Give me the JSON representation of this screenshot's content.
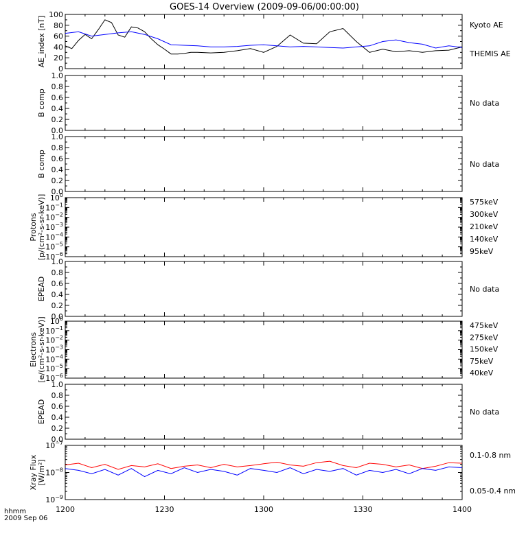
{
  "title": "GOES-14 Overview (2009-09-06/00:00:00)",
  "x_axis": {
    "tick_labels": [
      "1200",
      "1230",
      "1300",
      "1330",
      "1400"
    ],
    "footer_top": "hhmm",
    "footer_bottom": "2009 Sep 06"
  },
  "chart_data": [
    {
      "panel": "ae",
      "type": "line",
      "ylabel": "AE_index [nT]",
      "ylim": [
        0,
        100
      ],
      "yticks": [
        "0",
        "20",
        "40",
        "60",
        "80",
        "100"
      ],
      "x_range_min": [
        0,
        120
      ],
      "series": [
        {
          "name": "Kyoto AE",
          "color": "#000000",
          "x": [
            0,
            2,
            4,
            6,
            8,
            10,
            12,
            14,
            16,
            18,
            20,
            22,
            24,
            26,
            28,
            30,
            32,
            34,
            36,
            38,
            40,
            44,
            48,
            52,
            56,
            60,
            64,
            68,
            72,
            76,
            80,
            84,
            88,
            92,
            96,
            100,
            104,
            108,
            112,
            116,
            120
          ],
          "values": [
            42,
            37,
            52,
            63,
            55,
            72,
            90,
            85,
            62,
            58,
            77,
            75,
            68,
            55,
            44,
            36,
            27,
            27,
            28,
            30,
            30,
            29,
            30,
            33,
            37,
            30,
            41,
            62,
            47,
            46,
            68,
            74,
            50,
            30,
            36,
            31,
            33,
            30,
            33,
            34,
            40
          ]
        },
        {
          "name": "THEMIS AE",
          "color": "#0000ff",
          "x": [
            0,
            4,
            8,
            12,
            16,
            20,
            24,
            28,
            32,
            36,
            40,
            44,
            48,
            52,
            56,
            60,
            64,
            68,
            72,
            76,
            80,
            84,
            88,
            92,
            96,
            100,
            104,
            108,
            112,
            116,
            120
          ],
          "values": [
            65,
            68,
            60,
            63,
            66,
            68,
            63,
            55,
            44,
            43,
            42,
            40,
            40,
            41,
            43,
            44,
            42,
            40,
            41,
            40,
            39,
            38,
            40,
            42,
            50,
            53,
            48,
            45,
            38,
            42,
            39
          ]
        }
      ]
    },
    {
      "panel": "b1",
      "ylabel": "B comp",
      "ylim": [
        0,
        1
      ],
      "yticks": [
        "0.0",
        "0.2",
        "0.4",
        "0.6",
        "0.8",
        "1.0"
      ],
      "note": "No data"
    },
    {
      "panel": "b2",
      "ylabel": "B comp",
      "ylim": [
        0,
        1
      ],
      "yticks": [
        "0.0",
        "0.2",
        "0.4",
        "0.6",
        "0.8",
        "1.0"
      ],
      "note": "No data"
    },
    {
      "panel": "protons",
      "scale": "log",
      "ylabel_line1": "Protons",
      "ylabel_line2": "[p/(cm²-s-sr-keV)]",
      "ylim": [
        1e-06,
        1
      ],
      "legend": [
        {
          "label": "575keV",
          "color": "#8b0000"
        },
        {
          "label": "300keV",
          "color": "#ff9900"
        },
        {
          "label": "210keV",
          "color": "#00c800"
        },
        {
          "label": "140keV",
          "color": "#0000ff"
        },
        {
          "label": "95keV",
          "color": "#000000"
        }
      ]
    },
    {
      "panel": "epead1",
      "ylabel": "EPEAD",
      "ylim": [
        0,
        1
      ],
      "yticks": [
        "0.0",
        "0.2",
        "0.4",
        "0.6",
        "0.8",
        "1.0"
      ],
      "note": "No data"
    },
    {
      "panel": "electrons",
      "scale": "log",
      "ylabel_line1": "Electrons",
      "ylabel_line2": "[e/(cm²-s-sr-keV)]",
      "ylim": [
        1e-06,
        1
      ],
      "legend": [
        {
          "label": "475keV",
          "color": "#8b0000"
        },
        {
          "label": "275keV",
          "color": "#ff9900"
        },
        {
          "label": "150keV",
          "color": "#00c800"
        },
        {
          "label": "75keV",
          "color": "#0000ff"
        },
        {
          "label": "40keV",
          "color": "#000000"
        }
      ]
    },
    {
      "panel": "epead2",
      "ylabel": "EPEAD",
      "ylim": [
        0,
        1
      ],
      "yticks": [
        "0.0",
        "0.2",
        "0.4",
        "0.6",
        "0.8",
        "1.0"
      ],
      "note": "No data"
    },
    {
      "panel": "xray",
      "type": "line",
      "scale": "log",
      "ylabel_line1": "Xray Flux",
      "ylabel_line2": "[W/m²]",
      "ylim": [
        1e-09,
        1e-07
      ],
      "x_range_min": [
        0,
        120
      ],
      "series": [
        {
          "name": "0.1-0.8 nm",
          "color": "#ff0000",
          "x": [
            0,
            4,
            8,
            12,
            16,
            20,
            24,
            28,
            32,
            36,
            40,
            44,
            48,
            52,
            56,
            60,
            64,
            68,
            72,
            76,
            80,
            84,
            88,
            92,
            96,
            100,
            104,
            108,
            112,
            116,
            120
          ],
          "values": [
            1.9e-08,
            2.2e-08,
            1.5e-08,
            2e-08,
            1.3e-08,
            1.8e-08,
            1.6e-08,
            2.1e-08,
            1.4e-08,
            1.7e-08,
            1.9e-08,
            1.5e-08,
            2e-08,
            1.6e-08,
            1.8e-08,
            2.1e-08,
            2.4e-08,
            1.9e-08,
            1.7e-08,
            2.3e-08,
            2.6e-08,
            1.8e-08,
            1.5e-08,
            2.2e-08,
            2e-08,
            1.6e-08,
            1.9e-08,
            1.4e-08,
            1.7e-08,
            2.3e-08,
            2.2e-08
          ]
        },
        {
          "name": "0.05-0.4 nm",
          "color": "#0000ff",
          "x": [
            0,
            4,
            8,
            12,
            16,
            20,
            24,
            28,
            32,
            36,
            40,
            44,
            48,
            52,
            56,
            60,
            64,
            68,
            72,
            76,
            80,
            84,
            88,
            92,
            96,
            100,
            104,
            108,
            112,
            116,
            120
          ],
          "values": [
            1.4e-08,
            1.2e-08,
            9e-09,
            1.3e-08,
            8e-09,
            1.4e-08,
            7e-09,
            1.2e-08,
            9e-09,
            1.5e-08,
            1e-08,
            1.3e-08,
            1.1e-08,
            8e-09,
            1.4e-08,
            1.2e-08,
            1e-08,
            1.5e-08,
            9e-09,
            1.3e-08,
            1.1e-08,
            1.4e-08,
            8e-09,
            1.2e-08,
            1e-08,
            1.3e-08,
            9e-09,
            1.4e-08,
            1.2e-08,
            1.6e-08,
            1.5e-08
          ]
        }
      ]
    }
  ]
}
